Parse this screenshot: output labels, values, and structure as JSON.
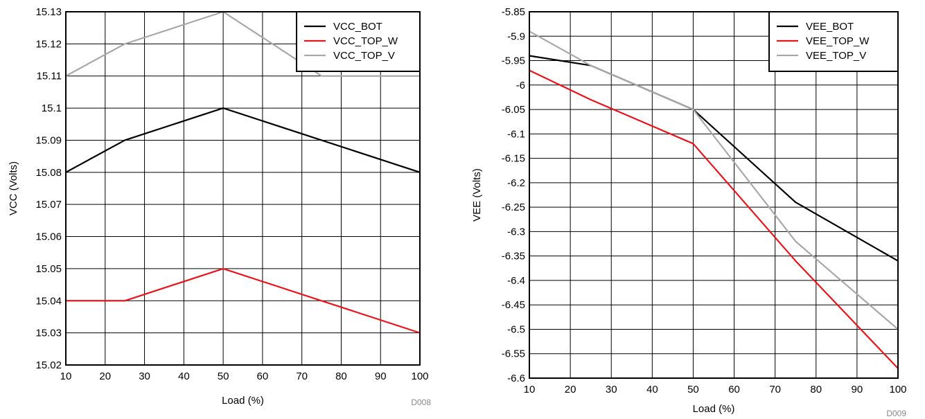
{
  "chart_data": [
    {
      "type": "line",
      "id_label": "D008",
      "xlabel": "Load (%)",
      "ylabel": "VCC (Volts)",
      "xlim": [
        10,
        100
      ],
      "ylim": [
        15.02,
        15.13
      ],
      "xticks": [
        "10",
        "20",
        "30",
        "40",
        "50",
        "60",
        "70",
        "80",
        "90",
        "100"
      ],
      "yticks": [
        "15.02",
        "15.03",
        "15.04",
        "15.05",
        "15.06",
        "15.07",
        "15.08",
        "15.09",
        "15.1",
        "15.11",
        "15.12",
        "15.13"
      ],
      "grid": true,
      "legend_position": "top-right",
      "series": [
        {
          "name": "VCC_BOT",
          "color": "#000000",
          "x": [
            10,
            25,
            50,
            75,
            100
          ],
          "y": [
            15.08,
            15.09,
            15.1,
            15.09,
            15.08
          ]
        },
        {
          "name": "VCC_TOP_W",
          "color": "#e8141c",
          "x": [
            10,
            25,
            50,
            75,
            100
          ],
          "y": [
            15.04,
            15.04,
            15.05,
            15.04,
            15.03
          ]
        },
        {
          "name": "VCC_TOP_V",
          "color": "#a8a8a8",
          "x": [
            10,
            25,
            50,
            75,
            100
          ],
          "y": [
            15.11,
            15.12,
            15.13,
            15.11,
            15.11
          ]
        }
      ]
    },
    {
      "type": "line",
      "id_label": "D009",
      "xlabel": "Load (%)",
      "ylabel": "VEE (Volts)",
      "xlim": [
        10,
        100
      ],
      "ylim": [
        -6.6,
        -5.85
      ],
      "xticks": [
        "10",
        "20",
        "30",
        "40",
        "50",
        "60",
        "70",
        "80",
        "90",
        "100"
      ],
      "yticks": [
        "-6.6",
        "-6.55",
        "-6.5",
        "-6.45",
        "-6.4",
        "-6.35",
        "-6.3",
        "-6.25",
        "-6.2",
        "-6.15",
        "-6.1",
        "-6.05",
        "-6",
        "-5.95",
        "-5.9",
        "-5.85"
      ],
      "grid": true,
      "legend_position": "top-right",
      "series": [
        {
          "name": "VEE_BOT",
          "color": "#000000",
          "x": [
            10,
            25,
            50,
            75,
            100
          ],
          "y": [
            -5.94,
            -5.96,
            -6.05,
            -6.24,
            -6.36
          ]
        },
        {
          "name": "VEE_TOP_W",
          "color": "#e8141c",
          "x": [
            10,
            25,
            50,
            75,
            100
          ],
          "y": [
            -5.97,
            -6.03,
            -6.12,
            -6.36,
            -6.58
          ]
        },
        {
          "name": "VEE_TOP_V",
          "color": "#a8a8a8",
          "x": [
            10,
            25,
            50,
            75,
            100
          ],
          "y": [
            -5.89,
            -5.96,
            -6.05,
            -6.32,
            -6.5
          ]
        }
      ]
    }
  ]
}
